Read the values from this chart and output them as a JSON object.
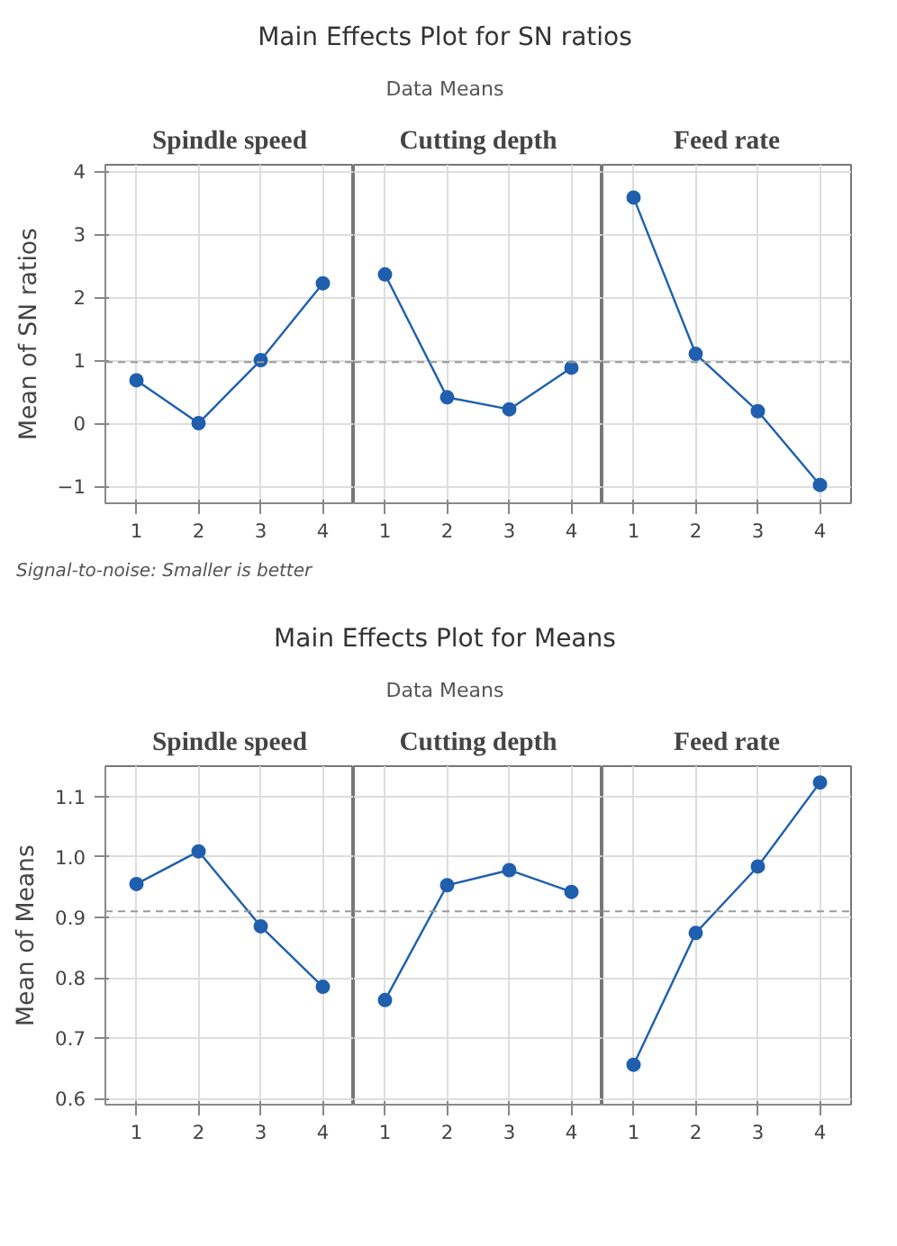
{
  "chart_data": [
    {
      "type": "line",
      "xlabel": "Spindle speed",
      "ylabel": "Mean of SN ratios",
      "x": [
        1,
        2,
        3,
        4
      ],
      "series": [
        {
          "color": "#1f5fae",
          "values": [
            0.68,
            0.0,
            1.0,
            2.22
          ]
        }
      ],
      "xlim": [
        0.5,
        4.5
      ],
      "xticks": [
        1,
        2,
        3,
        4
      ],
      "ylim": [
        -1.27,
        4.1
      ],
      "yticks": [
        -1,
        0,
        1,
        2,
        3,
        4
      ],
      "ref_lines": [
        {
          "axis": "y",
          "value": 0.97,
          "color": "#999999",
          "line_style": "dashed"
        }
      ],
      "grid": true,
      "marker": "circle",
      "annotations": [
        "Signal-to-noise: Smaller is better"
      ]
    },
    {
      "type": "line",
      "title": "Main Effects Plot for SN ratios",
      "subtitle": "Data Means",
      "xlabel": "Cutting depth",
      "x": [
        1,
        2,
        3,
        4
      ],
      "series": [
        {
          "color": "#1f5fae",
          "values": [
            2.36,
            0.41,
            0.22,
            0.88
          ]
        }
      ],
      "xlim": [
        0.5,
        4.5
      ],
      "xticks": [
        1,
        2,
        3,
        4
      ],
      "ylim": [
        -1.27,
        4.1
      ],
      "yticks": [
        -1,
        0,
        1,
        2,
        3,
        4
      ],
      "ref_lines": [
        {
          "axis": "y",
          "value": 0.97,
          "color": "#999999",
          "line_style": "dashed"
        }
      ],
      "grid": true,
      "marker": "circle",
      "tick_labels": "x"
    },
    {
      "type": "line",
      "xlabel": "Feed rate",
      "x": [
        1,
        2,
        3,
        4
      ],
      "series": [
        {
          "color": "#1f5fae",
          "values": [
            3.58,
            1.1,
            0.19,
            -0.98
          ]
        }
      ],
      "xlim": [
        0.5,
        4.5
      ],
      "xticks": [
        1,
        2,
        3,
        4
      ],
      "ylim": [
        -1.27,
        4.1
      ],
      "yticks": [
        -1,
        0,
        1,
        2,
        3,
        4
      ],
      "ref_lines": [
        {
          "axis": "y",
          "value": 0.97,
          "color": "#999999",
          "line_style": "dashed"
        }
      ],
      "grid": true,
      "marker": "circle",
      "tick_labels": "x"
    },
    {
      "type": "line",
      "xlabel": "Spindle speed",
      "ylabel": "Mean of Means",
      "x": [
        1,
        2,
        3,
        4
      ],
      "series": [
        {
          "color": "#1f5fae",
          "values": [
            0.955,
            1.009,
            0.885,
            0.785
          ]
        }
      ],
      "xlim": [
        0.5,
        4.5
      ],
      "xticks": [
        1,
        2,
        3,
        4
      ],
      "ylim": [
        0.59,
        1.15
      ],
      "yticks": [
        {
          "value": 0.6,
          "label": "0.6"
        },
        {
          "value": 0.7,
          "label": "0.7"
        },
        {
          "value": 0.8,
          "label": "0.8"
        },
        {
          "value": 0.9,
          "label": "0.9"
        },
        {
          "value": 1.0,
          "label": "1.0"
        },
        {
          "value": 1.1,
          "label": "1.1"
        }
      ],
      "ref_lines": [
        {
          "axis": "y",
          "value": 0.91,
          "color": "#999999",
          "line_style": "dashed"
        }
      ],
      "grid": true,
      "marker": "circle"
    },
    {
      "type": "line",
      "title": "Main Effects Plot for Means",
      "subtitle": "Data Means",
      "xlabel": "Cutting depth",
      "x": [
        1,
        2,
        3,
        4
      ],
      "series": [
        {
          "color": "#1f5fae",
          "values": [
            0.763,
            0.953,
            0.978,
            0.942
          ]
        }
      ],
      "xlim": [
        0.5,
        4.5
      ],
      "xticks": [
        1,
        2,
        3,
        4
      ],
      "ylim": [
        0.59,
        1.15
      ],
      "yticks": [
        0.6,
        0.7,
        0.8,
        0.9,
        1.0,
        1.1
      ],
      "ref_lines": [
        {
          "axis": "y",
          "value": 0.91,
          "color": "#999999",
          "line_style": "dashed"
        }
      ],
      "grid": true,
      "marker": "circle",
      "tick_labels": "x"
    },
    {
      "type": "line",
      "xlabel": "Feed rate",
      "x": [
        1,
        2,
        3,
        4
      ],
      "series": [
        {
          "color": "#1f5fae",
          "values": [
            0.656,
            0.874,
            0.984,
            1.123
          ]
        }
      ],
      "xlim": [
        0.5,
        4.5
      ],
      "xticks": [
        1,
        2,
        3,
        4
      ],
      "ylim": [
        0.59,
        1.15
      ],
      "yticks": [
        0.6,
        0.7,
        0.8,
        0.9,
        1.0,
        1.1
      ],
      "ref_lines": [
        {
          "axis": "y",
          "value": 0.91,
          "color": "#999999",
          "line_style": "dashed"
        }
      ],
      "grid": true,
      "marker": "circle",
      "tick_labels": "x"
    }
  ]
}
